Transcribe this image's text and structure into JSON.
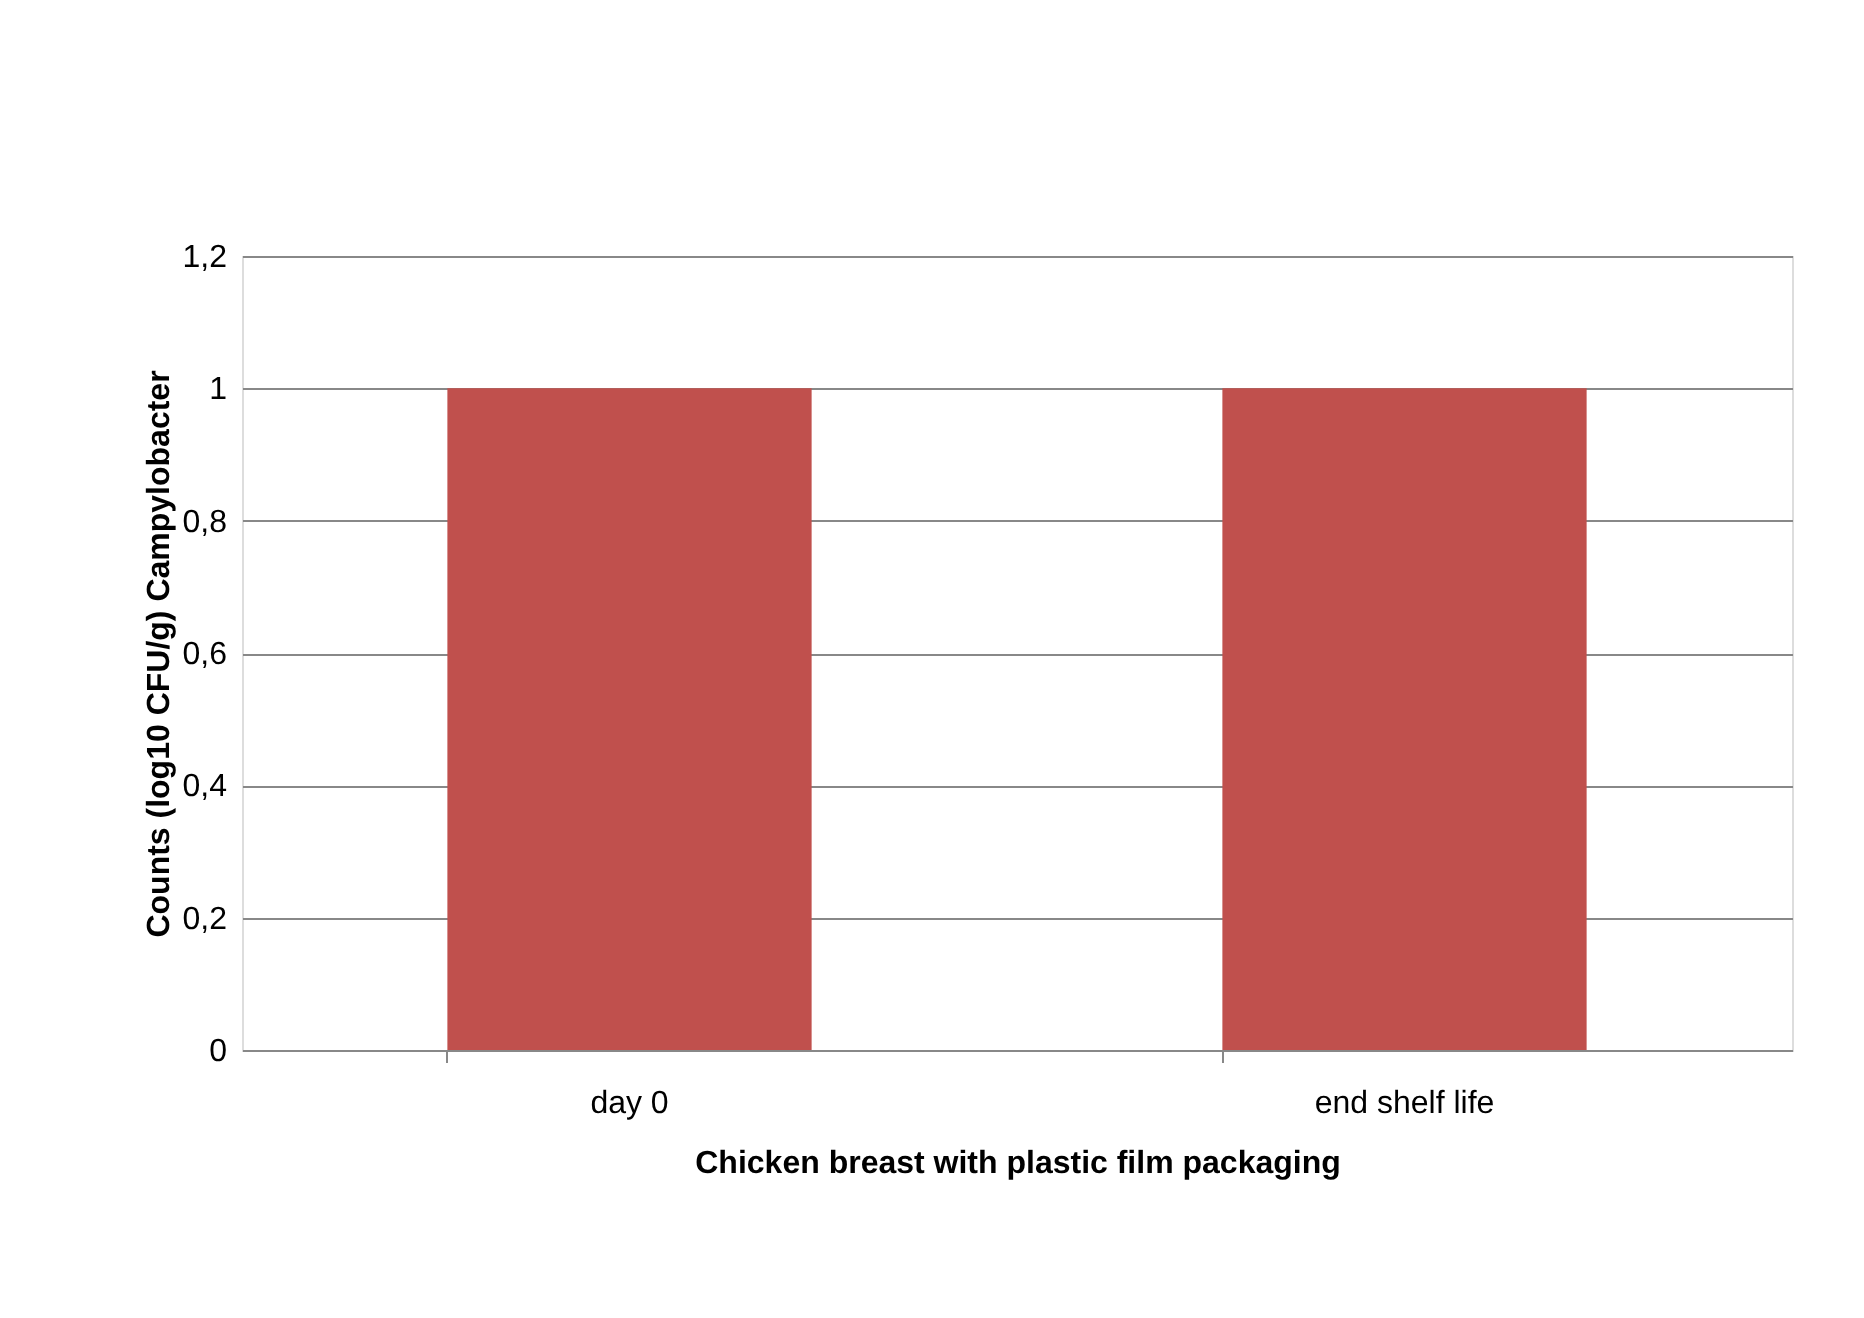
{
  "chart_data": {
    "type": "bar",
    "xlabel": "Chicken breast with plastic film packaging",
    "ylabel": "Counts (log10 CFU/g) Campylobacter",
    "categories": [
      "day 0",
      "end shelf life"
    ],
    "series": [
      {
        "color": "#c0504d",
        "values": [
          1,
          1
        ]
      }
    ],
    "ylim": [
      0,
      1.2
    ],
    "yticks": [
      0,
      {
        "value": 0.2,
        "label": "0,2"
      },
      {
        "value": 0.4,
        "label": "0,4"
      },
      {
        "value": 0.6,
        "label": "0,6"
      },
      {
        "value": 0.8,
        "label": "0,8"
      },
      1,
      {
        "value": 1.2,
        "label": "1,2"
      }
    ],
    "grid": "y",
    "legend": false
  }
}
